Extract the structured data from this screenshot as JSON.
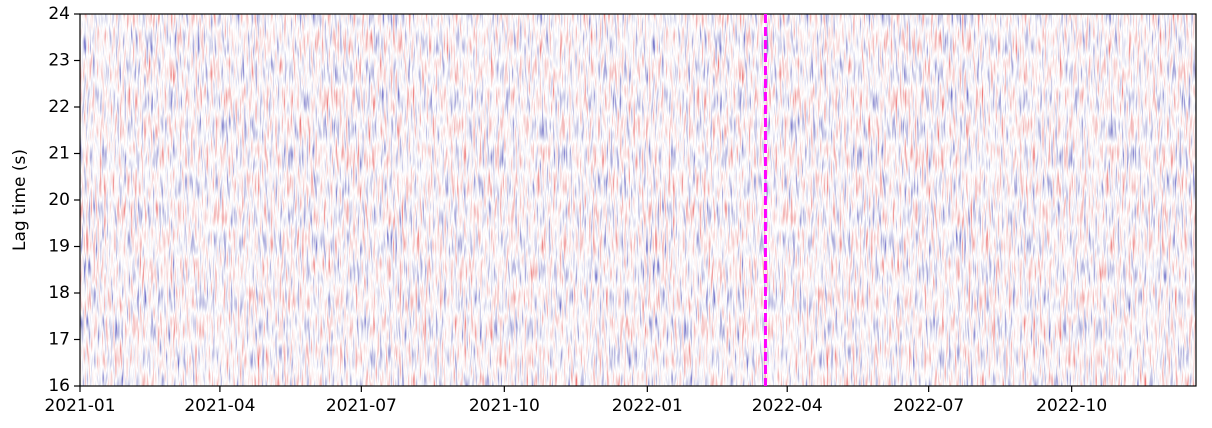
{
  "chart_data": {
    "type": "heatmap",
    "ylabel": "Lag time (s)",
    "xlim": [
      "2021-01-01",
      "2022-12-20"
    ],
    "xticks": [
      {
        "value": "2021-01-01",
        "label": "2021-01"
      },
      {
        "value": "2021-04-01",
        "label": "2021-04"
      },
      {
        "value": "2021-07-01",
        "label": "2021-07"
      },
      {
        "value": "2021-10-01",
        "label": "2021-10"
      },
      {
        "value": "2022-01-01",
        "label": "2022-01"
      },
      {
        "value": "2022-04-01",
        "label": "2022-04"
      },
      {
        "value": "2022-07-01",
        "label": "2022-07"
      },
      {
        "value": "2022-10-01",
        "label": "2022-10"
      }
    ],
    "ylim": [
      16,
      24
    ],
    "yticks": [
      16,
      17,
      18,
      19,
      20,
      21,
      22,
      23,
      24
    ],
    "colormap": [
      "#2b2b99",
      "#ffffff",
      "#d93030"
    ],
    "vline": {
      "x": "2022-03-18",
      "color": "#ff00ff"
    }
  }
}
